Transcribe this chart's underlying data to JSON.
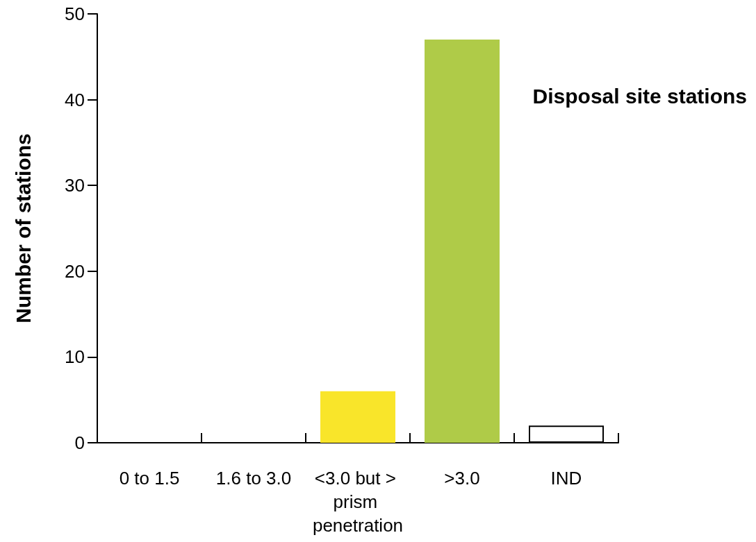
{
  "chart_data": {
    "type": "bar",
    "title": "Disposal site stations",
    "ylabel": "Number of stations",
    "categories": [
      "0 to 1.5",
      "1.6 to 3.0",
      "<3.0 but > prism penetration",
      ">3.0",
      "IND"
    ],
    "values": [
      0,
      0,
      6,
      47,
      2
    ],
    "colors": [
      "#afcb48",
      "#afcb48",
      "#f9e52a",
      "#afcb48",
      "#ffffff"
    ],
    "ylim": [
      0,
      50
    ],
    "yticks": [
      0,
      10,
      20,
      30,
      40,
      50
    ],
    "grid": false
  }
}
